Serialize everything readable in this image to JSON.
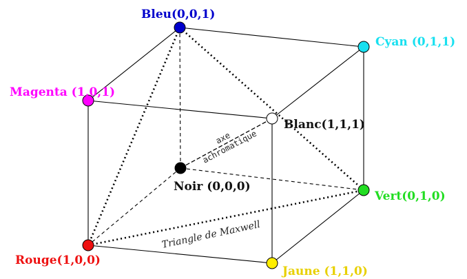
{
  "vertices": {
    "bleu": {
      "label": "Bleu(0,0,1)",
      "color": "#0000cc"
    },
    "cyan": {
      "label": "Cyan (0,1,1)",
      "color": "#18e0f0"
    },
    "magenta": {
      "label": "Magenta (1,0,1)",
      "color": "#ff00ff"
    },
    "blanc": {
      "label": "Blanc(1,1,1)",
      "color": "#111111",
      "fill": "#ffffff"
    },
    "noir": {
      "label": "Noir (0,0,0)",
      "color": "#111111",
      "fill": "#000000"
    },
    "vert": {
      "label": "Vert(0,1,0)",
      "color": "#22dd22"
    },
    "rouge": {
      "label": "Rouge(1,0,0)",
      "color": "#ee1111"
    },
    "jaune": {
      "label": "Jaune (1,1,0)",
      "color": "#ffee00",
      "label_color": "#e8d000"
    }
  },
  "annotations": {
    "axe_line1": "axe",
    "axe_line2": "achromatique",
    "triangle": "Triangle de Maxwell"
  }
}
